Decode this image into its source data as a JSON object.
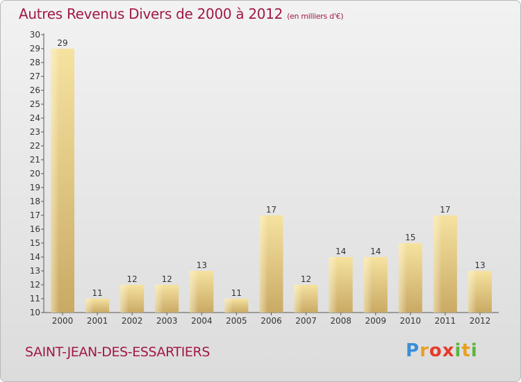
{
  "header": {
    "title": "Autres Revenus Divers de 2000 à 2012",
    "subtitle": "(en milliers d'€)"
  },
  "footer": {
    "place": "SAINT-JEAN-DES-ESSARTIERS",
    "logo_letters": [
      "P",
      "r",
      "o",
      "x",
      "i",
      "t",
      "i"
    ]
  },
  "colors": {
    "title": "#a01848",
    "bar_light": "#f6e2a0",
    "bar_dark": "#c9aa64",
    "logo": [
      "#3b8fd8",
      "#e8a020",
      "#e83a2a",
      "#5bb540"
    ]
  },
  "chart_data": {
    "type": "bar",
    "title": "Autres Revenus Divers de 2000 à 2012",
    "subtitle": "(en milliers d'€)",
    "categories": [
      "2000",
      "2001",
      "2002",
      "2003",
      "2004",
      "2005",
      "2006",
      "2007",
      "2008",
      "2009",
      "2010",
      "2011",
      "2012"
    ],
    "values": [
      29,
      11,
      12,
      12,
      13,
      11,
      17,
      12,
      14,
      14,
      15,
      17,
      13
    ],
    "ylim": [
      10,
      30
    ],
    "yticks": [
      10,
      11,
      12,
      13,
      14,
      15,
      16,
      17,
      18,
      19,
      20,
      21,
      22,
      23,
      24,
      25,
      26,
      27,
      28,
      29,
      30
    ],
    "grid": false,
    "legend": "none"
  }
}
